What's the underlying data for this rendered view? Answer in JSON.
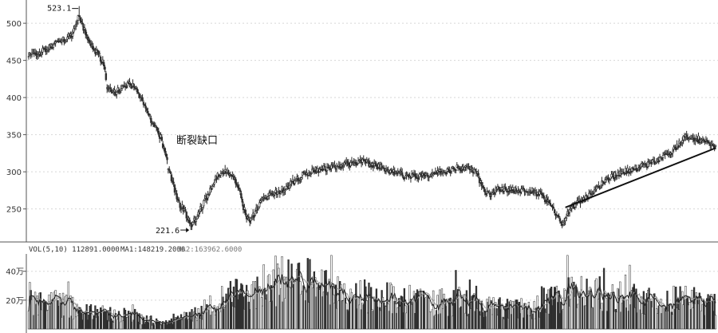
{
  "chart_data": [
    {
      "type": "candlestick",
      "price_axis": {
        "ylim": [
          212,
          527
        ],
        "ticks": [
          {
            "value": 500,
            "label": "500"
          },
          {
            "value": 450,
            "label": "450"
          },
          {
            "value": 400,
            "label": "400"
          },
          {
            "value": 350,
            "label": "350"
          },
          {
            "value": 300,
            "label": "300"
          },
          {
            "value": 250,
            "label": "250"
          }
        ]
      },
      "annotations": {
        "high": {
          "value": 523.1,
          "label": "523.1",
          "bar": 47
        },
        "low": {
          "value": 221.6,
          "label": "221.6",
          "bar": 151
        },
        "gap_label": "断裂缺口"
      },
      "trendline": {
        "from": {
          "bar": 500,
          "price": 252
        },
        "to": {
          "bar": 640,
          "price": 332
        }
      },
      "keypoints": [
        [
          0,
          455
        ],
        [
          10,
          460
        ],
        [
          20,
          468
        ],
        [
          30,
          475
        ],
        [
          40,
          484
        ],
        [
          47,
          512
        ],
        [
          52,
          490
        ],
        [
          58,
          470
        ],
        [
          64,
          460
        ],
        [
          70,
          445
        ],
        [
          73,
          413
        ],
        [
          78,
          405
        ],
        [
          86,
          412
        ],
        [
          94,
          420
        ],
        [
          100,
          410
        ],
        [
          106,
          396
        ],
        [
          112,
          375
        ],
        [
          118,
          362
        ],
        [
          124,
          342
        ],
        [
          130,
          307
        ],
        [
          134,
          286
        ],
        [
          140,
          258
        ],
        [
          146,
          245
        ],
        [
          151,
          228
        ],
        [
          156,
          238
        ],
        [
          162,
          255
        ],
        [
          168,
          272
        ],
        [
          174,
          290
        ],
        [
          180,
          302
        ],
        [
          186,
          300
        ],
        [
          192,
          290
        ],
        [
          197,
          270
        ],
        [
          202,
          242
        ],
        [
          207,
          235
        ],
        [
          212,
          248
        ],
        [
          220,
          265
        ],
        [
          232,
          272
        ],
        [
          245,
          285
        ],
        [
          258,
          298
        ],
        [
          270,
          303
        ],
        [
          280,
          305
        ],
        [
          295,
          310
        ],
        [
          310,
          314
        ],
        [
          325,
          308
        ],
        [
          340,
          300
        ],
        [
          355,
          293
        ],
        [
          370,
          295
        ],
        [
          385,
          300
        ],
        [
          400,
          305
        ],
        [
          410,
          308
        ],
        [
          418,
          296
        ],
        [
          425,
          272
        ],
        [
          432,
          270
        ],
        [
          438,
          278
        ],
        [
          446,
          275
        ],
        [
          456,
          276
        ],
        [
          466,
          275
        ],
        [
          476,
          270
        ],
        [
          484,
          258
        ],
        [
          492,
          240
        ],
        [
          498,
          230
        ],
        [
          505,
          252
        ],
        [
          515,
          262
        ],
        [
          525,
          270
        ],
        [
          535,
          285
        ],
        [
          545,
          295
        ],
        [
          556,
          300
        ],
        [
          567,
          306
        ],
        [
          578,
          310
        ],
        [
          588,
          318
        ],
        [
          598,
          326
        ],
        [
          606,
          338
        ],
        [
          613,
          348
        ],
        [
          620,
          346
        ],
        [
          628,
          342
        ],
        [
          634,
          338
        ],
        [
          640,
          335
        ]
      ]
    },
    {
      "type": "bar",
      "title": "VOL(5,10)",
      "legend": {
        "vol_text": "VOL(5,10) 112891.0000",
        "ma1_text": "MA1:148219.2000",
        "ma2_text": "MA2:163962.6000"
      },
      "yaxis": {
        "ylim": [
          0,
          52
        ],
        "ticks": [
          {
            "value": 40,
            "label": "40万"
          },
          {
            "value": 20,
            "label": "20万"
          }
        ]
      },
      "keypoints": [
        [
          0,
          20
        ],
        [
          30,
          17
        ],
        [
          60,
          11
        ],
        [
          90,
          10
        ],
        [
          110,
          6
        ],
        [
          130,
          4
        ],
        [
          150,
          9
        ],
        [
          175,
          18
        ],
        [
          200,
          25
        ],
        [
          230,
          33
        ],
        [
          250,
          36
        ],
        [
          270,
          28
        ],
        [
          300,
          24
        ],
        [
          320,
          22
        ],
        [
          340,
          21
        ],
        [
          370,
          20
        ],
        [
          400,
          19
        ],
        [
          425,
          16
        ],
        [
          450,
          13
        ],
        [
          475,
          15
        ],
        [
          498,
          24
        ],
        [
          520,
          25
        ],
        [
          550,
          22
        ],
        [
          580,
          19
        ],
        [
          610,
          20
        ],
        [
          640,
          16
        ]
      ]
    }
  ],
  "colors": {
    "up": "#ffffff",
    "down": "#333333",
    "outline": "#2a2a2a",
    "grid": "#d8d8d8",
    "axis": "#555555",
    "ma1": "#222222",
    "ma2": "#9a9a9a",
    "trendline": "#111111"
  }
}
